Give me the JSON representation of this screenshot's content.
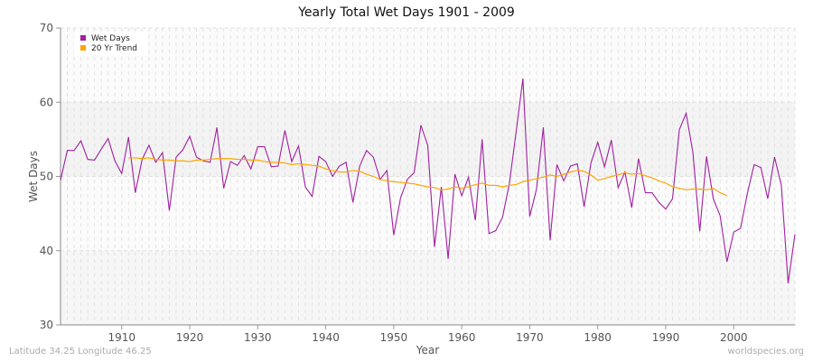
{
  "chart_data": {
    "type": "line",
    "title": "Yearly Total Wet Days 1901 - 2009",
    "xlabel": "Year",
    "ylabel": "Wet Days",
    "xlim": [
      1901,
      2009
    ],
    "ylim": [
      30,
      70
    ],
    "xticks": [
      1910,
      1920,
      1930,
      1940,
      1950,
      1960,
      1970,
      1980,
      1990,
      2000
    ],
    "yticks": [
      30,
      40,
      50,
      60,
      70
    ],
    "grid": true,
    "legend_position": "top-left",
    "series": [
      {
        "name": "Wet Days",
        "color": "#a020a0",
        "x_start": 1901,
        "values": [
          49.5,
          53.5,
          53.5,
          54.8,
          52.3,
          52.2,
          53.7,
          55.1,
          52.1,
          50.4,
          55.3,
          47.8,
          52.3,
          54.2,
          51.9,
          53.2,
          45.4,
          52.6,
          53.6,
          55.4,
          52.6,
          52.1,
          51.9,
          56.6,
          48.4,
          52.0,
          51.5,
          52.8,
          51.0,
          54.0,
          54.0,
          51.3,
          51.4,
          56.2,
          52.0,
          54.1,
          48.6,
          47.3,
          52.7,
          52.0,
          50.0,
          51.4,
          51.9,
          46.5,
          51.4,
          53.5,
          52.6,
          49.6,
          50.8,
          42.1,
          47.1,
          49.6,
          50.5,
          56.9,
          54.2,
          40.5,
          48.6,
          38.9,
          50.3,
          47.4,
          49.9,
          44.1,
          55.0,
          42.3,
          42.7,
          44.5,
          49.0,
          56.0,
          63.2,
          44.6,
          48.3,
          56.6,
          41.4,
          51.6,
          49.4,
          51.4,
          51.7,
          45.9,
          51.8,
          54.6,
          51.3,
          54.9,
          48.5,
          50.6,
          45.8,
          52.4,
          47.8,
          47.8,
          46.5,
          45.6,
          47.0,
          56.3,
          58.5,
          53.2,
          42.6,
          52.7,
          47.0,
          44.7,
          38.5,
          42.5,
          43.0,
          47.7,
          51.6,
          51.2,
          47.0,
          52.6,
          48.8,
          35.6,
          42.2
        ]
      },
      {
        "name": "20 Yr Trend",
        "color": "#ffa500",
        "x_start": 1911,
        "values": [
          52.5,
          52.5,
          52.4,
          52.5,
          52.3,
          52.2,
          52.2,
          52.1,
          52.1,
          52.0,
          52.2,
          52.2,
          52.3,
          52.4,
          52.4,
          52.4,
          52.3,
          52.3,
          52.2,
          52.2,
          52.0,
          51.9,
          51.9,
          51.8,
          51.6,
          51.7,
          51.6,
          51.5,
          51.4,
          51.0,
          50.8,
          50.6,
          50.6,
          50.8,
          50.7,
          50.3,
          50.0,
          49.6,
          49.4,
          49.3,
          49.2,
          49.1,
          49.0,
          48.8,
          48.6,
          48.5,
          48.2,
          48.3,
          48.6,
          48.4,
          48.6,
          48.9,
          49.1,
          48.8,
          48.8,
          48.6,
          48.8,
          48.9,
          49.3,
          49.5,
          49.7,
          49.9,
          50.2,
          50.0,
          50.3,
          50.6,
          50.8,
          50.7,
          50.2,
          49.5,
          49.7,
          50.0,
          50.2,
          50.5,
          50.3,
          50.4,
          50.1,
          49.8,
          49.4,
          49.1,
          48.6,
          48.4,
          48.2,
          48.3,
          48.3,
          48.2,
          48.4,
          47.8,
          47.4
        ]
      }
    ]
  },
  "footer": {
    "location": "Latitude 34.25 Longitude 46.25",
    "source": "worldspecies.org"
  }
}
